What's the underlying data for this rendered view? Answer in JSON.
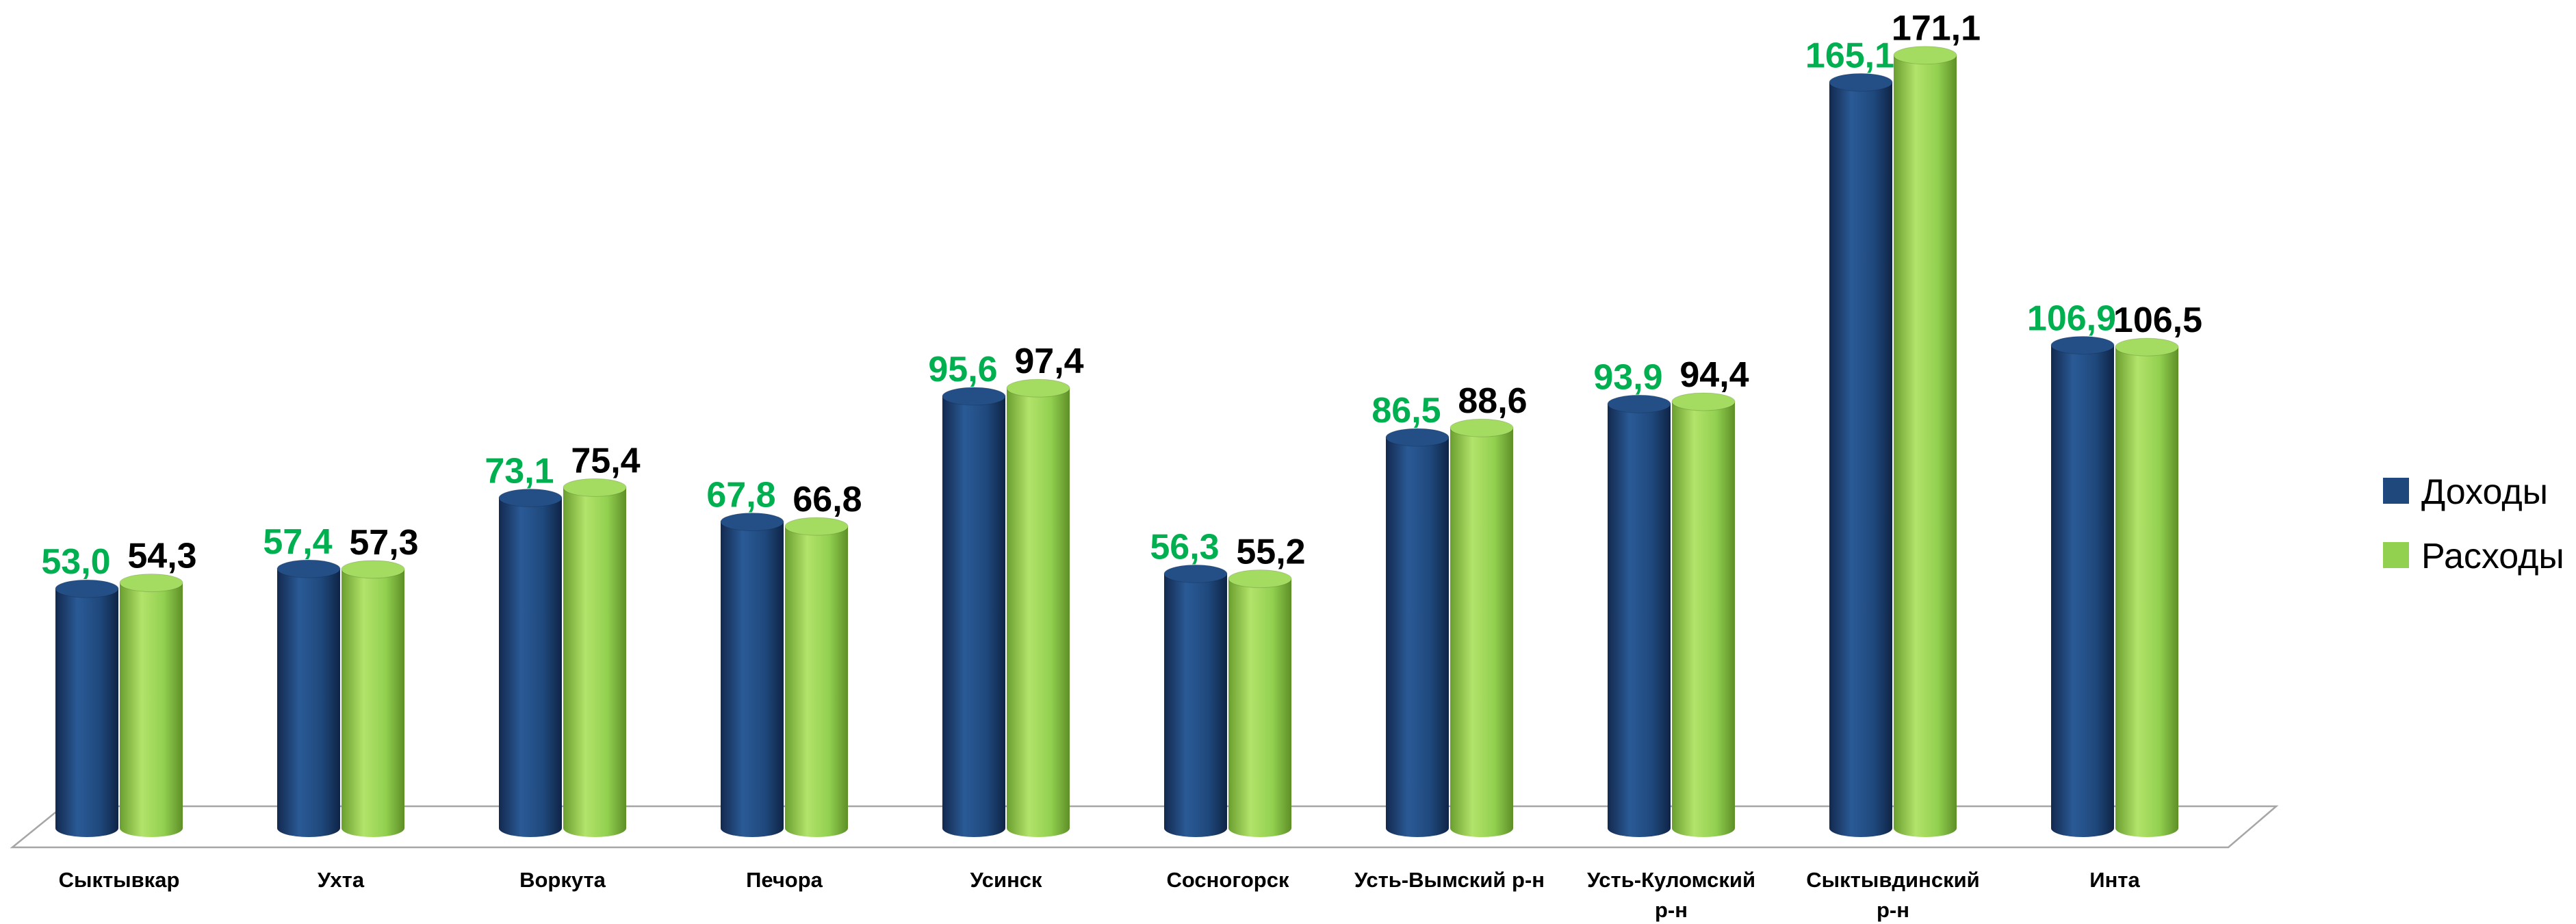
{
  "chart_data": {
    "type": "bar",
    "categories": [
      [
        "Сыктывкар"
      ],
      [
        "Ухта"
      ],
      [
        "Воркута"
      ],
      [
        "Печора"
      ],
      [
        "Усинск"
      ],
      [
        "Сосногорск"
      ],
      [
        "Усть-Вымский р-н"
      ],
      [
        "Усть-Куломский",
        "р-н"
      ],
      [
        "Сыктывдинский",
        "р-н"
      ],
      [
        "Инта"
      ]
    ],
    "series": [
      {
        "name": "Доходы",
        "values": [
          53.0,
          57.4,
          73.1,
          67.8,
          95.6,
          56.3,
          86.5,
          93.9,
          165.1,
          106.9
        ],
        "labels": [
          "53,0",
          "57,4",
          "73,1",
          "67,8",
          "95,6",
          "56,3",
          "86,5",
          "93,9",
          "165,1",
          "106,9"
        ],
        "color": "#1f497d",
        "label_color": "#00b050"
      },
      {
        "name": "Расходы",
        "values": [
          54.3,
          57.3,
          75.4,
          66.8,
          97.4,
          55.2,
          88.6,
          94.4,
          171.1,
          106.5
        ],
        "labels": [
          "54,3",
          "57,3",
          "75,4",
          "66,8",
          "97,4",
          "55,2",
          "88,6",
          "94,4",
          "171,1",
          "106,5"
        ],
        "color": "#92d050",
        "label_color": "#000000"
      }
    ],
    "ylim": [
      0,
      175
    ],
    "grid": false,
    "legend_position": "right",
    "style": "3d-cylinder"
  }
}
